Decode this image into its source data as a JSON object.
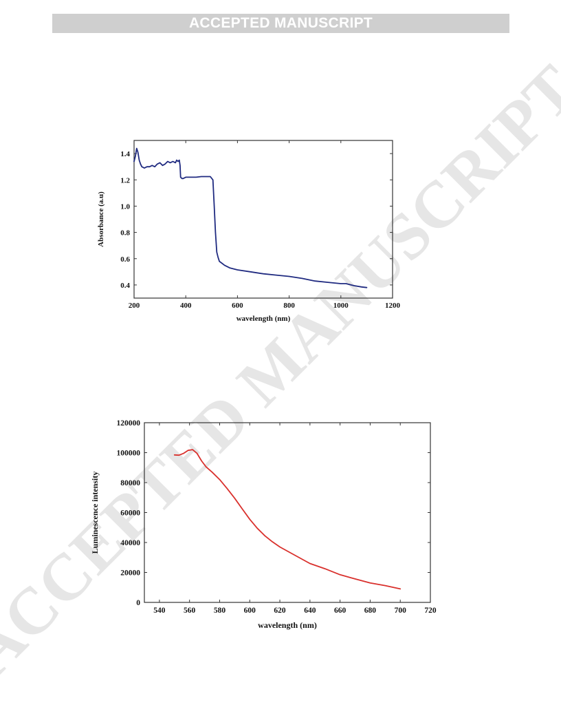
{
  "header": {
    "banner": "ACCEPTED MANUSCRIPT"
  },
  "watermark": {
    "text": "ACCEPTED MANUSCRIPT",
    "color": "#e6e6e6"
  },
  "chart_data": [
    {
      "type": "line",
      "title": "",
      "xlabel": "wavelength (nm)",
      "ylabel": "Absorbance (a.u)",
      "xlim": [
        200,
        1200
      ],
      "ylim": [
        0.3,
        1.5
      ],
      "xticks": [
        200,
        400,
        600,
        800,
        1000,
        1200
      ],
      "xtick_labels": [
        "200",
        "400",
        "600",
        "800",
        "1000",
        "1200"
      ],
      "yticks": [
        0.4,
        0.6,
        0.8,
        1.0,
        1.2,
        1.4
      ],
      "ytick_labels": [
        "0.4",
        "0.6",
        "0.8",
        "1.0",
        "1.2",
        "1.4"
      ],
      "grid": false,
      "color": "#1f2a80",
      "series": [
        {
          "x": [
            200,
            205,
            210,
            215,
            220,
            225,
            230,
            240,
            250,
            260,
            270,
            280,
            290,
            300,
            310,
            320,
            330,
            340,
            350,
            360,
            365,
            370,
            375,
            378,
            380,
            385,
            390,
            400,
            420,
            440,
            460,
            480,
            495,
            505,
            510,
            515,
            520,
            525,
            530,
            540,
            550,
            570,
            600,
            650,
            700,
            750,
            800,
            850,
            900,
            950,
            1000,
            1020,
            1050,
            1080,
            1100
          ],
          "y": [
            1.34,
            1.38,
            1.44,
            1.41,
            1.35,
            1.32,
            1.3,
            1.29,
            1.3,
            1.3,
            1.31,
            1.3,
            1.32,
            1.33,
            1.31,
            1.32,
            1.34,
            1.33,
            1.34,
            1.33,
            1.35,
            1.34,
            1.35,
            1.31,
            1.22,
            1.21,
            1.21,
            1.22,
            1.22,
            1.22,
            1.225,
            1.225,
            1.225,
            1.2,
            1.0,
            0.8,
            0.65,
            0.61,
            0.58,
            0.565,
            0.55,
            0.53,
            0.515,
            0.5,
            0.485,
            0.475,
            0.465,
            0.45,
            0.43,
            0.42,
            0.41,
            0.41,
            0.395,
            0.385,
            0.38
          ]
        }
      ]
    },
    {
      "type": "line",
      "title": "",
      "xlabel": "wavelength (nm)",
      "ylabel": "Luminescence intensity",
      "xlim": [
        530,
        720
      ],
      "ylim": [
        0,
        120000
      ],
      "xticks": [
        540,
        560,
        580,
        600,
        620,
        640,
        660,
        680,
        700,
        720
      ],
      "xtick_labels": [
        "540",
        "560",
        "580",
        "600",
        "620",
        "640",
        "660",
        "680",
        "700",
        "720"
      ],
      "yticks": [
        0,
        20000,
        40000,
        60000,
        80000,
        100000,
        120000
      ],
      "ytick_labels": [
        "0",
        "20000",
        "40000",
        "60000",
        "80000",
        "100000",
        "120000"
      ],
      "grid": false,
      "color": "#d9302c",
      "series": [
        {
          "x": [
            550,
            553,
            556,
            559,
            562,
            565,
            568,
            571,
            575,
            580,
            585,
            590,
            595,
            600,
            605,
            610,
            615,
            620,
            630,
            640,
            650,
            660,
            670,
            680,
            690,
            700
          ],
          "y": [
            98500,
            98300,
            99500,
            101500,
            102000,
            99500,
            94500,
            90500,
            87000,
            82000,
            76000,
            69500,
            62500,
            55500,
            49500,
            44500,
            40500,
            37000,
            31500,
            26000,
            22500,
            18500,
            15700,
            13000,
            11200,
            9000
          ]
        }
      ]
    }
  ]
}
